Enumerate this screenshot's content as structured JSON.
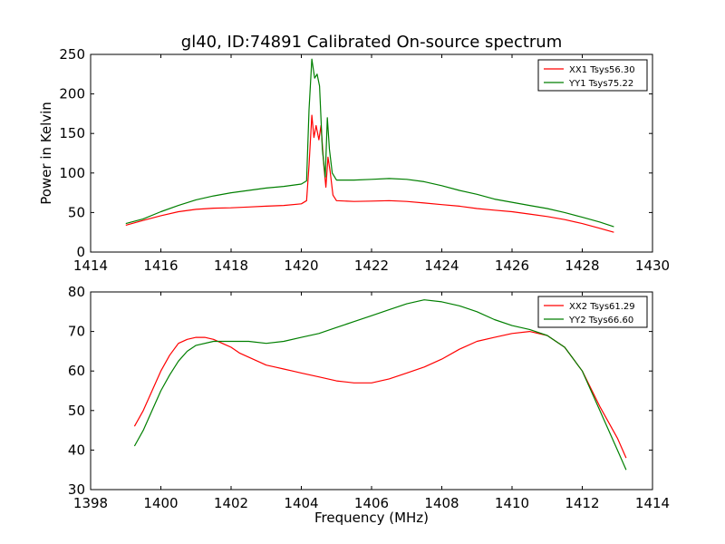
{
  "figure_title": "gl40, ID:74891 Calibrated On-source spectrum",
  "chart_data": [
    {
      "type": "line",
      "title": "gl40, ID:74891 Calibrated On-source spectrum",
      "xlabel": "",
      "ylabel": "Power in Kelvin",
      "xlim": [
        1414,
        1430
      ],
      "ylim": [
        0,
        250
      ],
      "xticks": [
        1414,
        1416,
        1418,
        1420,
        1422,
        1424,
        1426,
        1428,
        1430
      ],
      "yticks": [
        0,
        50,
        100,
        150,
        200,
        250
      ],
      "grid": false,
      "legend_position": "top-right",
      "series": [
        {
          "name": "XX1 Tsys56.30",
          "color": "#ff0000",
          "points": [
            [
              1415.0,
              34
            ],
            [
              1415.5,
              40
            ],
            [
              1416.0,
              46
            ],
            [
              1416.5,
              51
            ],
            [
              1417.0,
              54
            ],
            [
              1417.5,
              55.5
            ],
            [
              1418.0,
              56
            ],
            [
              1418.5,
              57
            ],
            [
              1419.0,
              58
            ],
            [
              1419.5,
              59
            ],
            [
              1420.0,
              61
            ],
            [
              1420.15,
              65
            ],
            [
              1420.22,
              110
            ],
            [
              1420.3,
              173
            ],
            [
              1420.36,
              145
            ],
            [
              1420.42,
              160
            ],
            [
              1420.5,
              142
            ],
            [
              1420.56,
              160
            ],
            [
              1420.64,
              110
            ],
            [
              1420.7,
              82
            ],
            [
              1420.76,
              120
            ],
            [
              1420.82,
              102
            ],
            [
              1420.9,
              72
            ],
            [
              1421.0,
              65
            ],
            [
              1421.5,
              64
            ],
            [
              1422.0,
              64.5
            ],
            [
              1422.5,
              65
            ],
            [
              1423.0,
              64
            ],
            [
              1423.5,
              62
            ],
            [
              1424.0,
              60
            ],
            [
              1424.5,
              58
            ],
            [
              1425.0,
              55
            ],
            [
              1425.5,
              53
            ],
            [
              1426.0,
              51
            ],
            [
              1426.5,
              48
            ],
            [
              1427.0,
              45
            ],
            [
              1427.5,
              41
            ],
            [
              1428.0,
              36
            ],
            [
              1428.5,
              30
            ],
            [
              1428.9,
              25
            ]
          ]
        },
        {
          "name": "YY1 Tsys75.22",
          "color": "#007f00",
          "points": [
            [
              1415.0,
              36
            ],
            [
              1415.5,
              42
            ],
            [
              1416.0,
              51
            ],
            [
              1416.5,
              59
            ],
            [
              1417.0,
              66
            ],
            [
              1417.5,
              71
            ],
            [
              1418.0,
              75
            ],
            [
              1418.5,
              78
            ],
            [
              1419.0,
              81
            ],
            [
              1419.5,
              83
            ],
            [
              1420.0,
              86
            ],
            [
              1420.15,
              90
            ],
            [
              1420.22,
              180
            ],
            [
              1420.3,
              244
            ],
            [
              1420.38,
              220
            ],
            [
              1420.45,
              225
            ],
            [
              1420.52,
              210
            ],
            [
              1420.6,
              130
            ],
            [
              1420.68,
              95
            ],
            [
              1420.74,
              170
            ],
            [
              1420.8,
              130
            ],
            [
              1420.88,
              100
            ],
            [
              1421.0,
              91
            ],
            [
              1421.5,
              91
            ],
            [
              1422.0,
              92
            ],
            [
              1422.5,
              93
            ],
            [
              1423.0,
              92
            ],
            [
              1423.5,
              89
            ],
            [
              1424.0,
              84
            ],
            [
              1424.5,
              78
            ],
            [
              1425.0,
              73
            ],
            [
              1425.5,
              67
            ],
            [
              1426.0,
              63
            ],
            [
              1426.5,
              59
            ],
            [
              1427.0,
              55
            ],
            [
              1427.5,
              50
            ],
            [
              1428.0,
              44
            ],
            [
              1428.5,
              38
            ],
            [
              1428.9,
              32
            ]
          ]
        }
      ]
    },
    {
      "type": "line",
      "title": "",
      "xlabel": "Frequency (MHz)",
      "ylabel": "",
      "xlim": [
        1398,
        1414
      ],
      "ylim": [
        30,
        80
      ],
      "xticks": [
        1398,
        1400,
        1402,
        1404,
        1406,
        1408,
        1410,
        1412,
        1414
      ],
      "yticks": [
        30,
        40,
        50,
        60,
        70,
        80
      ],
      "grid": false,
      "legend_position": "top-right",
      "series": [
        {
          "name": "XX2 Tsys61.29",
          "color": "#ff0000",
          "points": [
            [
              1399.25,
              46
            ],
            [
              1399.5,
              50
            ],
            [
              1399.75,
              55
            ],
            [
              1400.0,
              60
            ],
            [
              1400.25,
              64
            ],
            [
              1400.5,
              67
            ],
            [
              1400.75,
              68
            ],
            [
              1401.0,
              68.5
            ],
            [
              1401.25,
              68.5
            ],
            [
              1401.5,
              68
            ],
            [
              1401.75,
              67
            ],
            [
              1402.0,
              66
            ],
            [
              1402.25,
              64.5
            ],
            [
              1402.5,
              63.5
            ],
            [
              1402.75,
              62.5
            ],
            [
              1403.0,
              61.5
            ],
            [
              1403.25,
              61
            ],
            [
              1403.5,
              60.5
            ],
            [
              1403.75,
              60
            ],
            [
              1404.0,
              59.5
            ],
            [
              1404.5,
              58.5
            ],
            [
              1405.0,
              57.5
            ],
            [
              1405.5,
              57
            ],
            [
              1406.0,
              57
            ],
            [
              1406.5,
              58
            ],
            [
              1407.0,
              59.5
            ],
            [
              1407.5,
              61
            ],
            [
              1408.0,
              63
            ],
            [
              1408.5,
              65.5
            ],
            [
              1409.0,
              67.5
            ],
            [
              1409.5,
              68.5
            ],
            [
              1410.0,
              69.5
            ],
            [
              1410.5,
              70
            ],
            [
              1411.0,
              69
            ],
            [
              1411.5,
              66
            ],
            [
              1412.0,
              60
            ],
            [
              1412.5,
              51
            ],
            [
              1413.0,
              43
            ],
            [
              1413.25,
              38
            ]
          ]
        },
        {
          "name": "YY2 Tsys66.60",
          "color": "#007f00",
          "points": [
            [
              1399.25,
              41
            ],
            [
              1399.5,
              45
            ],
            [
              1399.75,
              50
            ],
            [
              1400.0,
              55
            ],
            [
              1400.25,
              59
            ],
            [
              1400.5,
              62.5
            ],
            [
              1400.75,
              65
            ],
            [
              1401.0,
              66.5
            ],
            [
              1401.5,
              67.5
            ],
            [
              1402.0,
              67.5
            ],
            [
              1402.5,
              67.5
            ],
            [
              1403.0,
              67
            ],
            [
              1403.5,
              67.5
            ],
            [
              1404.0,
              68.5
            ],
            [
              1404.5,
              69.5
            ],
            [
              1405.0,
              71
            ],
            [
              1405.5,
              72.5
            ],
            [
              1406.0,
              74
            ],
            [
              1406.5,
              75.5
            ],
            [
              1407.0,
              77
            ],
            [
              1407.5,
              78
            ],
            [
              1408.0,
              77.5
            ],
            [
              1408.5,
              76.5
            ],
            [
              1409.0,
              75
            ],
            [
              1409.5,
              73
            ],
            [
              1410.0,
              71.5
            ],
            [
              1410.5,
              70.5
            ],
            [
              1411.0,
              69
            ],
            [
              1411.5,
              66
            ],
            [
              1412.0,
              60
            ],
            [
              1412.5,
              50
            ],
            [
              1413.0,
              40
            ],
            [
              1413.25,
              35
            ]
          ]
        }
      ]
    }
  ]
}
